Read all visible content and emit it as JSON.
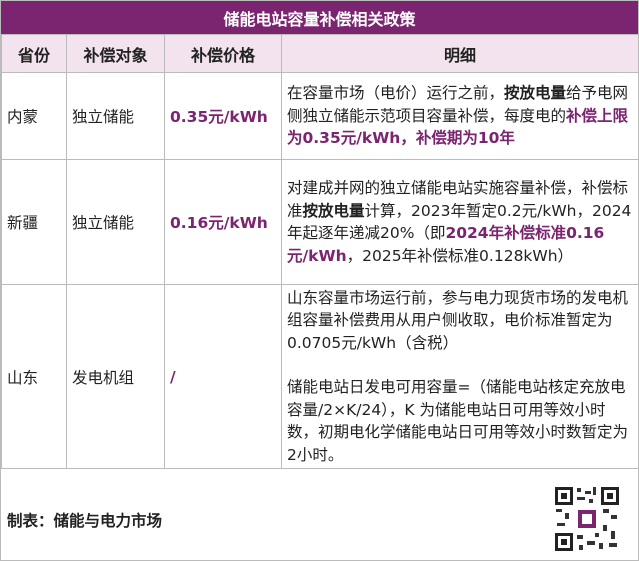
{
  "header": {
    "title": "储能电站容量补偿相关政策"
  },
  "table": {
    "columns": [
      "省份",
      "补偿对象",
      "补偿价格",
      "明细"
    ],
    "rows": [
      {
        "province": "内蒙",
        "target": "独立储能",
        "price": "0.35元/kWh",
        "detail": [
          "在容量市场（电价）运行之前，",
          "按放电量",
          "给予电网侧独立储能示范项目容量补偿，每度电的",
          "补偿上限为0.35元/kWh，补偿期为10年"
        ]
      },
      {
        "province": "新疆",
        "target": "独立储能",
        "price": "0.16元/kWh",
        "detail": [
          "对建成并网的独立储能电站实施容量补偿，补偿标准",
          "按放电量",
          "计算，2023年暂定0.2元/kWh，2024年起逐年递减20%（即",
          "2024年补偿标准0.16元/kWh",
          "，2025年补偿标准0.128kWh）"
        ]
      },
      {
        "province": "山东",
        "target": "发电机组",
        "price": "/",
        "detail": [
          "山东容量市场运行前，参与电力现货市场的发电机组容量补偿费用从用户侧收取，电价标准暂定为0.0705元/kWh（含税）",
          "储能电站日发电可用容量=（储能电站核定充放电容量/2×K/24），K 为储能电站日可用等效小时数，初期电化学储能电站日可用等效小时数暂定为2小时。"
        ]
      }
    ]
  },
  "footer": {
    "source": "制表：储能与电力市场"
  }
}
